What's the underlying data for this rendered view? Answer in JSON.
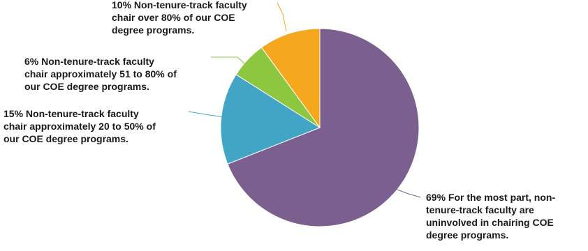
{
  "chart_data": {
    "type": "pie",
    "slices": [
      {
        "value": 69,
        "color": "#7b608f",
        "label_lines": [
          "69% For the most part, non-",
          "tenure-track faculty are",
          "uninvolved in chairing COE",
          "degree programs."
        ]
      },
      {
        "value": 15,
        "color": "#42a5c6",
        "label_lines": [
          "15% Non-tenure-track faculty",
          "chair approximately 20 to 50% of",
          "our COE degree programs."
        ]
      },
      {
        "value": 6,
        "color": "#8dc63f",
        "label_lines": [
          "6% Non-tenure-track faculty",
          "chair approximately 51 to 80% of",
          "our COE degree programs."
        ]
      },
      {
        "value": 10,
        "color": "#f5a71d",
        "label_lines": [
          "10% Non-tenure-track faculty",
          "chair over 80% of our COE",
          "degree programs."
        ]
      }
    ]
  }
}
